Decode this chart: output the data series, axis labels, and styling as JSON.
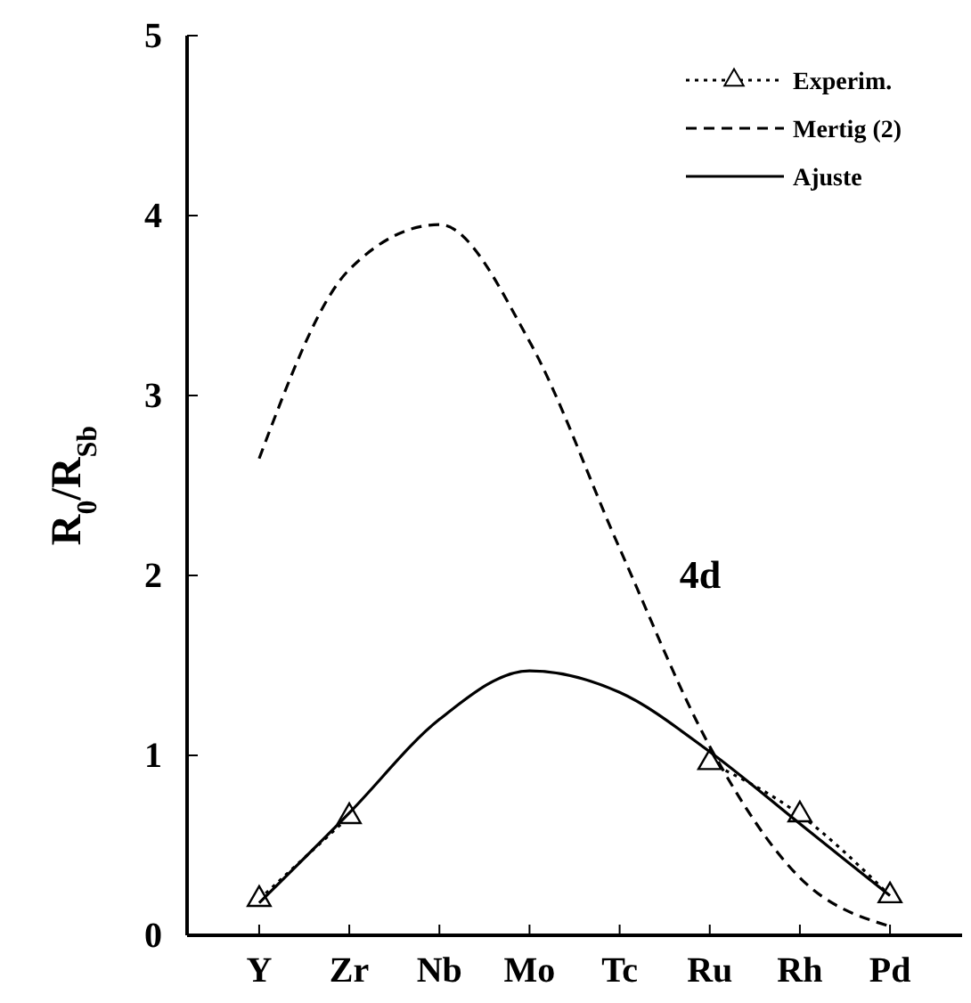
{
  "chart_data": {
    "type": "line",
    "ylabel": "R$_{0}$/R$_{Sb}$",
    "categories": [
      "Y",
      "Zr",
      "Nb",
      "Mo",
      "Tc",
      "Ru",
      "Rh",
      "Pd"
    ],
    "series": [
      {
        "name": "Experim.",
        "color": "#000000",
        "line_style": "dotted",
        "marker": "triangle",
        "values": [
          0.2,
          0.66,
          null,
          null,
          null,
          0.96,
          0.67,
          0.22
        ]
      },
      {
        "name": "Mertig (2)",
        "color": "#000000",
        "line_style": "dashed",
        "marker": "none",
        "values": [
          2.65,
          3.7,
          3.95,
          3.3,
          2.15,
          1.05,
          0.32,
          0.05
        ]
      },
      {
        "name": "Ajuste",
        "color": "#000000",
        "line_style": "solid",
        "marker": "none",
        "values": [
          0.18,
          0.68,
          1.2,
          1.47,
          1.35,
          1.02,
          0.62,
          0.22
        ]
      }
    ],
    "ylim": [
      0,
      5
    ],
    "yticks": [
      0,
      1,
      2,
      3,
      4,
      5
    ],
    "grid": false,
    "legend": "top right",
    "annotations": [
      "4d"
    ]
  }
}
